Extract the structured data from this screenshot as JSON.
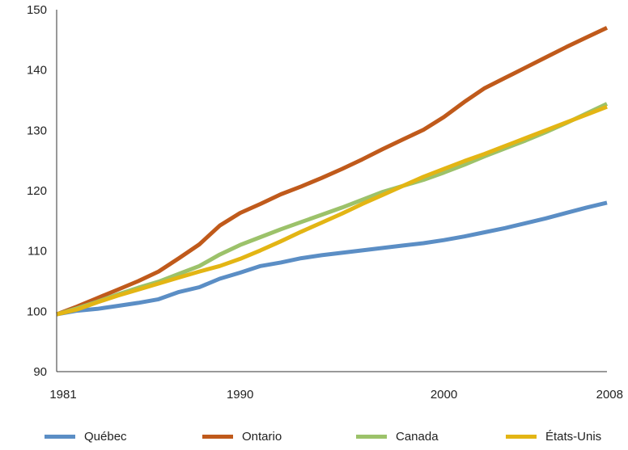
{
  "chart_data": {
    "type": "line",
    "title": "",
    "xlabel": "",
    "ylabel": "",
    "xlim": [
      1981,
      2008
    ],
    "ylim": [
      90,
      150
    ],
    "x_ticks": [
      "1981",
      "1990",
      "2000",
      "2008"
    ],
    "y_ticks": [
      "90",
      "100",
      "110",
      "120",
      "130",
      "140",
      "150"
    ],
    "grid": false,
    "legend_position": "bottom",
    "x": [
      1981,
      1982,
      1983,
      1984,
      1985,
      1986,
      1987,
      1988,
      1989,
      1990,
      1991,
      1992,
      1993,
      1994,
      1995,
      1996,
      1997,
      1998,
      1999,
      2000,
      2001,
      2002,
      2003,
      2004,
      2005,
      2006,
      2007,
      2008
    ],
    "series": [
      {
        "name": "Québec",
        "color": "#5b8ec5",
        "values": [
          99.5,
          100.1,
          100.4,
          100.9,
          101.4,
          102.0,
          103.2,
          104.0,
          105.4,
          106.4,
          107.5,
          108.1,
          108.8,
          109.3,
          109.7,
          110.1,
          110.5,
          110.9,
          111.3,
          111.8,
          112.4,
          113.1,
          113.8,
          114.6,
          115.4,
          116.3,
          117.2,
          118.0
        ]
      },
      {
        "name": "Ontario",
        "color": "#c05a1b",
        "values": [
          99.5,
          100.8,
          102.2,
          103.6,
          105.0,
          106.6,
          108.8,
          111.1,
          114.2,
          116.3,
          117.8,
          119.4,
          120.7,
          122.1,
          123.6,
          125.2,
          126.9,
          128.5,
          130.1,
          132.2,
          134.7,
          137.0,
          138.7,
          140.4,
          142.1,
          143.8,
          145.4,
          147.0
        ]
      },
      {
        "name": "Canada",
        "color": "#9cc26a",
        "values": [
          99.5,
          100.5,
          101.6,
          102.8,
          103.9,
          104.9,
          106.2,
          107.5,
          109.4,
          111.0,
          112.3,
          113.6,
          114.8,
          116.0,
          117.2,
          118.5,
          119.8,
          120.8,
          121.8,
          123.0,
          124.3,
          125.7,
          127.0,
          128.3,
          129.7,
          131.2,
          132.8,
          134.4
        ]
      },
      {
        "name": "États-Unis",
        "color": "#e3b514",
        "values": [
          99.5,
          100.3,
          101.5,
          102.6,
          103.6,
          104.6,
          105.6,
          106.6,
          107.5,
          108.7,
          110.1,
          111.6,
          113.2,
          114.7,
          116.2,
          117.8,
          119.3,
          120.8,
          122.3,
          123.6,
          124.9,
          126.1,
          127.4,
          128.7,
          130.0,
          131.3,
          132.6,
          133.9
        ]
      }
    ]
  }
}
